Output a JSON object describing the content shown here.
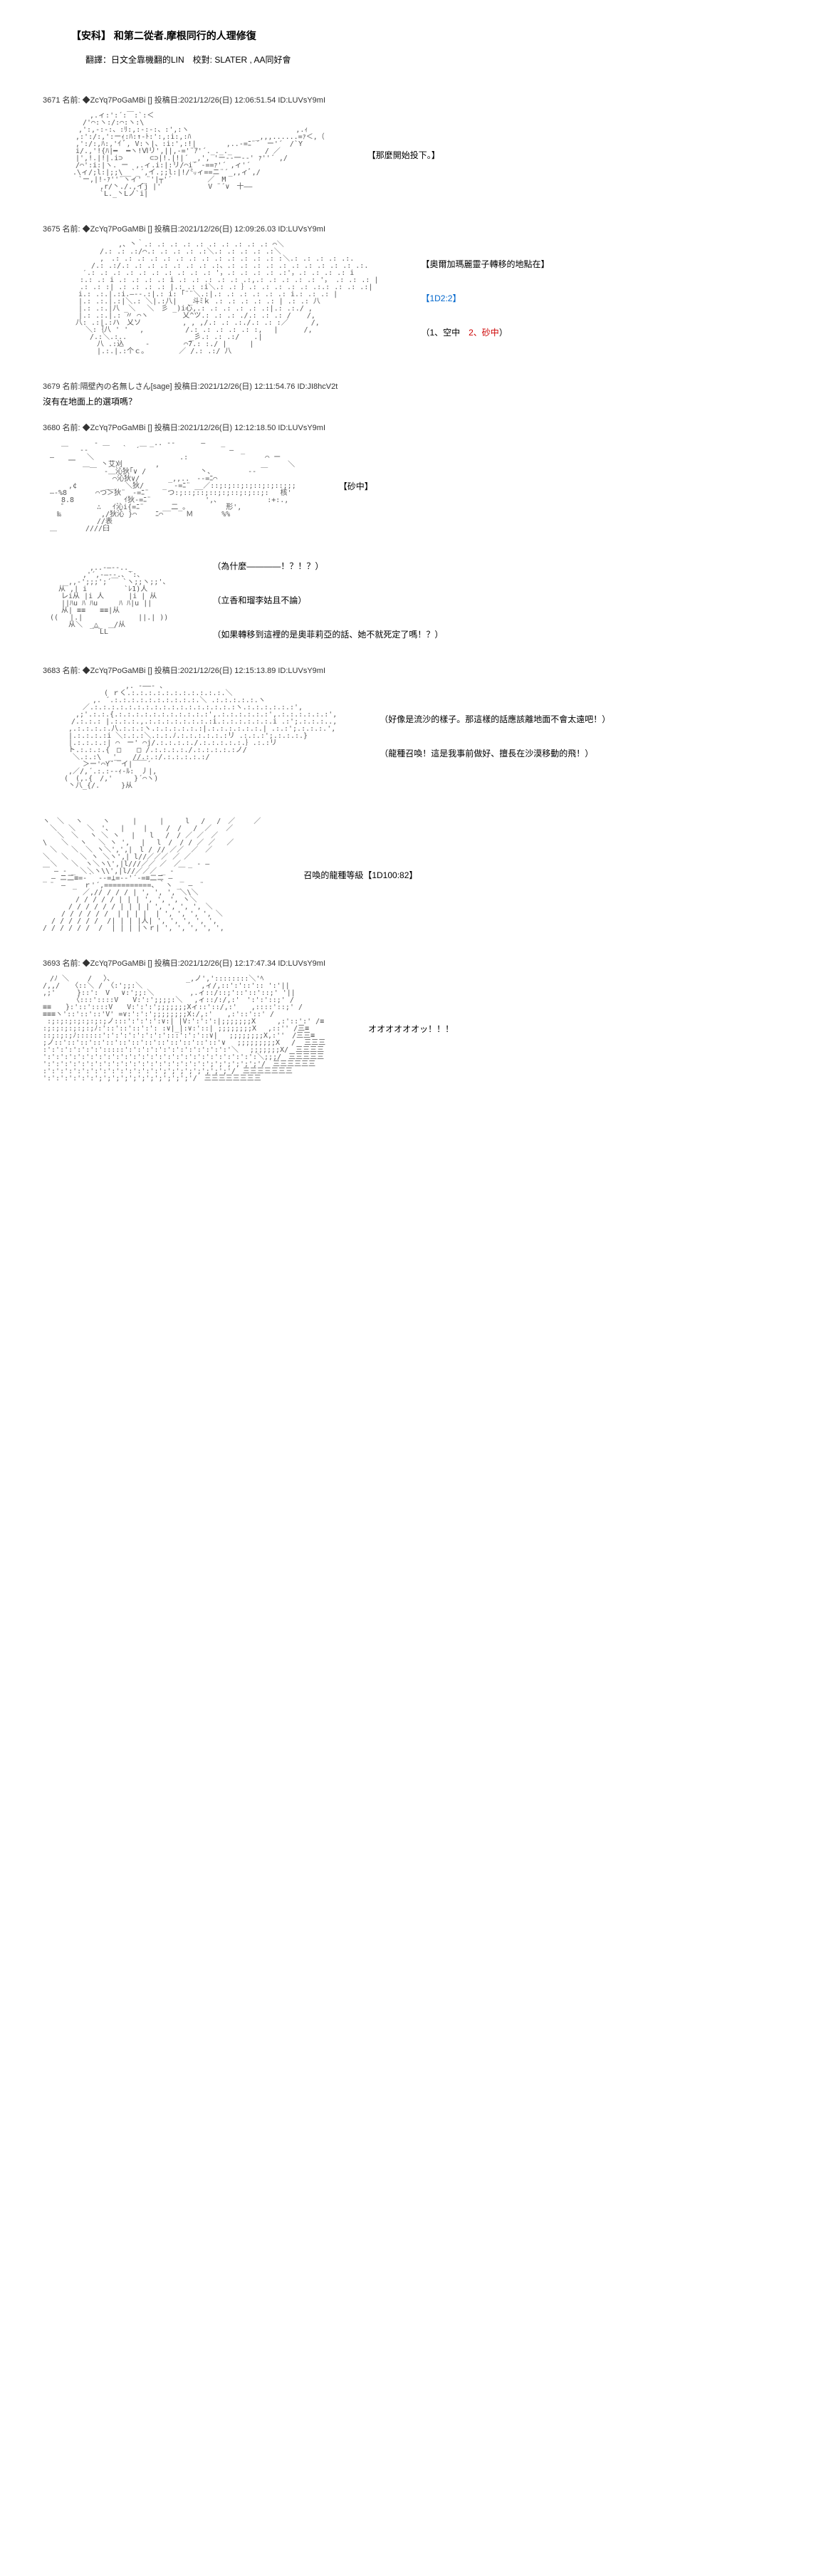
{
  "title": "【安科】 和第二從者.摩根同行的人理修復",
  "subtitle": "翻譯：日文全靠機翻的LIN　校對: SLATER , AA同好會",
  "posts": [
    {
      "id": "3671",
      "header": "3671 名前: ◆ZcYq7PoGaMBi [] 投稿日:2021/12/26(日) 12:06:51.54 ID:LUVsY9mI",
      "ascii_type": "character1",
      "side_text": "【那麼開始投下。】",
      "side_class": ""
    },
    {
      "id": "3675",
      "header": "3675 名前: ◆ZcYq7PoGaMBi [] 投稿日:2021/12/26(日) 12:09:26.03 ID:LUVsY9mI",
      "ascii_type": "character2",
      "side_text_html": true,
      "side_text": "【奧爾加瑪麗靈子轉移的地點在】<br><br><span class='blue-text'>【1D2:2】</span><br><br>（1、空中　<span class='red-text'>2、砂中</span>）"
    },
    {
      "id": "3679",
      "header": "3679 名前:隔壁內の名無しさん[sage] 投稿日:2021/12/26(日) 12:11:54.76 ID:JI8hcV2t",
      "simple": true,
      "simple_text": "沒有在地面上的選項嗎？"
    },
    {
      "id": "3680",
      "header": "3680 名前: ◆ZcYq7PoGaMBi [] 投稿日:2021/12/26(日) 12:12:18.50 ID:LUVsY9mI",
      "ascii_type": "swirl",
      "side_text": "【砂中】",
      "side_class": ""
    },
    {
      "id": "3680b",
      "header": "",
      "ascii_type": "character3",
      "side_text": "（為什麼————！？！？）<br><br>（立香和瑠李姑且不論）<br><br>（如果轉移到這裡的是奧菲莉亞的話、她不就死定了嗎！？）",
      "side_text_html": true
    },
    {
      "id": "3683",
      "header": "3683 名前: ◆ZcYq7PoGaMBi [] 投稿日:2021/12/26(日) 12:15:13.89 ID:LUVsY9mI",
      "ascii_type": "character4",
      "side_text": "（好像是流沙的樣子。那這樣的話應該離地面不會太遠吧！）<br><br>（龍種召喚！這是我事前做好、擅長在沙漠移動的飛！）",
      "side_text_html": true
    },
    {
      "id": "3683b",
      "header": "",
      "ascii_type": "rays",
      "side_text": "召喚的龍種等級【1D100:82】",
      "side_class": ""
    },
    {
      "id": "3693",
      "header": "3693 名前: ◆ZcYq7PoGaMBi [] 投稿日:2021/12/26(日) 12:17:47.34 ID:LUVsY9mI",
      "ascii_type": "dragon",
      "side_text": "オオオオオオッ！！！",
      "side_class": ""
    }
  ],
  "ascii_samples": {
    "character1": "　　　　　　 ,.ィ:':´:￣:`:＜\n　　　　　 /'⌒:ヽ:/:⌒:ヽ:\\\n　　　　　,':,-:-:、:ﾘ:,:-:-:、:',:ヽ　　　　　　　　　　　　　　　,.ｨ\n　　　　 ,:':/:,':ーｨ:ﾊ:↑-ﾄ:':,:i:,:ﾊ　　　　　　　　　_,,,......=ｧ＜,（\n　　　　 ,':/:,ﾊ:,'ｲ ﾞ, V:ヽ|、:i:',:!|　 　 　,..-=ﾆ¨´　ー'´　/`Y\n　　　　 i/.,'!{ﾊ|━  ━ヽ!Ⅵリ',||,-='¨ｱ'´._._._　　　　 / ／\n　　　　 |',!.|!|.i⊃ 　 　 ⊂⊃|!.|!|´ _,', 'ー--一--' ｧ''´ ,/\n　　　　 /⌒':i:|ヽ. ー　,.ィ.i:|:リ/⌒i´ ‐==ｧ'´ ,ィ'´\n　　 　 .\\ィ/;l:|;;\\__`_´,イ.;;l:|!/㍉ィ==ニ¨´_,,ィﾞ,/\n　　　　　`ー,|!-ｧ''¨ヽィ'_¨'|┬'´　　　　　／　M\n　　　　　　　　,r/丶./.,イj |'　　　　　　 V ¨´∨　十――\n　　　　　　　　`L._丶Lノ`i|",
    "character2": "　　 　 　 　 　 　 ,、丶｀.: .: .: .: .: .: .: .: .: .: ⌒＼\n　　　　　　　　/.: .: .:/⌒.: .: .: .: .:＼.: .: .: .: .:＼\n　 　 　 　 　 ,　.: .: .: .: .: .: .: .: .: .: .: .: .: :＼.: .: .: .: .:.\n　　 　 　 　/.: .:/.: .: .: .: .: .: .: .:、.: .: .: .: .: .: .: .: .: .: .:.\n　　　　　 ′.: .: .: .: .: .: .: .: .: .: '，.: .: .: .: .:'，.: .: .: .: i\n　　　 　 :.: .: i .: .: .: .: i .: .: .: .: .: .:,.: .: .: .: .: '， .: .: .: |\n　　 　 　.: .: :| .: .: .: .: |.: .: :i＼.: .: ｝.: .: .: .: .: .:.: .: .: .:|\n　　　　　i.: .:.|.:i.―‐-.:|.: i: ｢¨¨＼.:|.: .: .: .: .: .: i.: .: .: |\n　　　　　|.: .:.|.:|＼.: ＼|.:八| 　_斗ﾐｋ .: .: .: .: .: | .: .: 八\n　　　　　|.: .:.|八 _＼ 　＼　彡 _)i心,.: .: .: .: .: .:|.: .:./ ,\n　　　　　|.: .:.|.: 〃 ⌒ヽ 　　 　 乂^ツ.: .: .: ./.: .: .: / 　 /,\n　　　　 八: .:|.:ハ　乂ソ 　　　 　 , , ,/.: .: .:./.: .: :／ 　　 /,\n　　　　　　＼:｛八 ' '　 ,　 　 　　 /.: .: .: .: .: :, 　|　　　 /,\n　　　　　　 /.:＼.:..　　　 　　 　 　_彡.: .: .:/　　.|\n　　　　　　　 八 .:込　　　‐ 　 　 　⌒7.: :./ |　 　 |\n　　　　　　　 |.:.|.:个ｃ。　 　 　 ／ /.: .:/ 八",
    "swirl": "　　　　 　 　‐ ＿　　　　 　_.. -‐　　 　― 　 _\n　　 ￣　 ‐-　　　　 ｀　´￣　　　　　　　　　　　 ―　_\n　―　　＿　 ＼　　　　 　 　 　 　 　.:　　　　　　 　 　 　⌒ ー\n　　　 ￣　＿　 丶艾刈　　　　 ,　　　　　　　　　　　　　　　　　　＼\n　　　　　　 ￣　‐＿沁狄｢∨ /　　　　　　　 丶、　　　  　-‐ ￣\n　　　　　 　 　 　⌒沁狄∨/　　　　_,,..　-‐=ﾆ⌒\n　　　 ,¢　　　　__　 ＼狄/　　 _　-=ﾆ¨ __／::;:;::;:;::;:;::;;;\n　―-%8　　　　⌒つ＞狄¨　-=ﾆ¨　　 つ:;::;::;::;:;::;:;::;:　 核'\n　　 8.8　　　　　　　ｲ狄-=ﾆ¨　　　　　　　 ',､　　　　　　　:+:.,\n　　 ゜　　　　∴ 　ｲ沁i{=ﾆ¨　　 __二_｡　　　　　 形',\n　　‰　　　　　 ,/狄沁 }⌒　 　ﾆ⌒ 　 　Ｍ　　　　%%\n　　　　　　　 //表\n　＿　　　　////𦥑",
    "character3": "　　　　　　 ,..-―‐-.._\n　　　　　 ,'´,-―--.、`:、\n　　　_,,-';;;';´￣ `ヽ;;ヽ;;'、\n 　 从 ,| i 　　　　 `ﾚ1)人\n　　 レi从 |i 人　    |i | 从\n　　 ||ﾊu ﾊ ﾊu　　　ﾊ ﾊ|u ||\n　　 从| ≡≡　　≡≡|从\n　(( 　|.|　　　 　 　　 ||.| ))\n　　　 从＼　_△_　 /从\n　　　　　　　￣LL￣",
    "character4": "　　　　　　　　　　　 ,. -――- 、\n　　　　　　　　 ( ｒく.:.:.:.:.:.:.:.:.:.:.:.＼\n　　　　　　　,. ´.:.:.:.:.:.:.:.:.:.:.＼ .:.:.:.:.:.ヽ\n　　　　　 ／.:.:.:.:.:.:.:.:.:.:.:.:.:.:.:.:.:ヽ.:.:.:.:.:.:',\n　　　 　,;'.:.:.{.:.:.:.:.:.:.:.:.:.:.:',.:.:.:.:.:.:',.:.:.:.:.:.:',\n　　　　/.:.:.: |.:.:.:.,.:.:.:.:.:.:.:.:i.:.:.:.:.:.:.i .:';.:.:.:..,\n　　　 ,.:.:.:.:.八.:.:.:ヽ.:.:.:.:.:.:|.:.:.:.:.:.:.| .:.:';.:.:.:.',\n　　　 |.:.:.:.:i ＼:.:.:＼.:.:.ﾉ.:.:.:.:.:.:リ .:.:.:';.:.:.:.}\n　　　 |.:.:.:.:| ⌒　ー' ⌒j/.:.:.:.:./.:.:.:.:.:.｝.:.:リ\n　　　 ト.:.:.:.{　□ 　 □ /.:.:.:.:./.:.:.:.:.:ノ/\n　 　 　＼.:.:\\　_'_　 //.:.:/.:.:.:.:.:/\n　　　　　 ＞ー'⌒Y´￣イ|￣￣´\n　　　 ,／/,´.:.:--ｨ-ﾙ:　丿|,\n　　　(　(,.{　/,'　　　}´⌒ヽ)\n　　 　丶八_{/.　　　}从",
    "rays": "ヽ　＼　 ヽ 　  ヽ 　 　|　 　 |　　　l　 /　 /　／　　 ／\n　＼ 　＼　 ＼　'、　 |　　 |　　 /　/　 /　／　　／\n　　＼　＼　 ヽ ＼ ヽ 　|　　l　 /　/ ／ ／　／\n\\　　＼ 　ヽ　 ＼ ヽ ', 　|　 l　/　/ / ／ ／ 　／\n　＼　　＼　＼ ヽ＼',',|　l / // ／／　／　／\n＼ 　＼　 ＼ ヽ ＼ヽ',| l//／／／ ／ ／\n　＼　　＼　ヽ＼ヽ\\',|l///／／ ／　／　_ - ―\n￣ ― - _ ＼＼ヽ\\\\',|l//／／／ _ - ￣\n_ ― ニ二≡=-｀ ‐-=⊥=-‐'´-=≡二ニ ―　_\n　¨　―　_　ｒ'´,===========、｀ヽ _　―　¨\n　　　　　 ／,// / / / | ', ', ', ＼\\＼\n　　　　 / / / / / | | | ', ', ', ヽ＼\n　　　 / / / / / / | | | | ', ', ', ', ＼\n　　 / / / / / /  | | | |  | ', ', ', ', ＼\n  / / / / / /  /| | | |人| ', ', ', ', ',\n/ / / / / /  /  | | | |ヽｒ| ', ', ', ', ',",
    "dragon": "　/ﾉ ＼　　 /　 〉、　　　　　　　　　　 _,ノ','::::::::＼'ﾍ\n/,,/　 〈::＼ / 〈:';;:＼ 　　　　　　　 ,ィ/,::':'::':: ':'||\n,;'　　　}::':　V　 ∨:';;:＼　　　　　,.ィ::/::;'::'::'::;' '||\n　　　  〈:::'::::V　　V:':';;;;:＼　 ,ィ::/:/,:'　':':'::;' /\n≡≡　　}:'::'::::V　　V:':':';;;;;;;Xィ::'::/,:'　　,::::'::;' /\n≡≡≡ヽ'::'::'::'V' =∨:':':';;;;;;;;X:/,:'　　,:'::'::' /\n :;:;:;:;:;:;:;ノ:::':':':':∨:| |V:':':':|;;;;;;;X　　　,:'::':' /≡\n:;:;:;:;:;:;ﾉ:'::'::'::':': :∨|_|:∨:'::| ;;;;;;;;X　 ,::'' /三≡\n::;:;:;ﾉ::::::':':':':':':':':::':':'::∨|　 ;;;;;;;;X,:''　/三三≡\n;ノ::'::'::'::'::'::'::'::'::'::'::'::'::'∨　 ;;;;;;;;;X　 /  三三三\n:':':':':':':':::::':':':':':':':':':':':':'＼　 ;;;;;;;X/　三三三三\n':':':':':':':':':':':':':':':':':':':':':':':':':＼;;;/　三三三三三\n':':':':':':':':':':':':':':':':':':':';';';';';';'/　三三三三三三\n:':':':':':':':':':':':':':';';';';';';';';'/　三三三三三三三\n':':':':':':';';';';';';';';';';';'/　三三三三三三三三"
  }
}
